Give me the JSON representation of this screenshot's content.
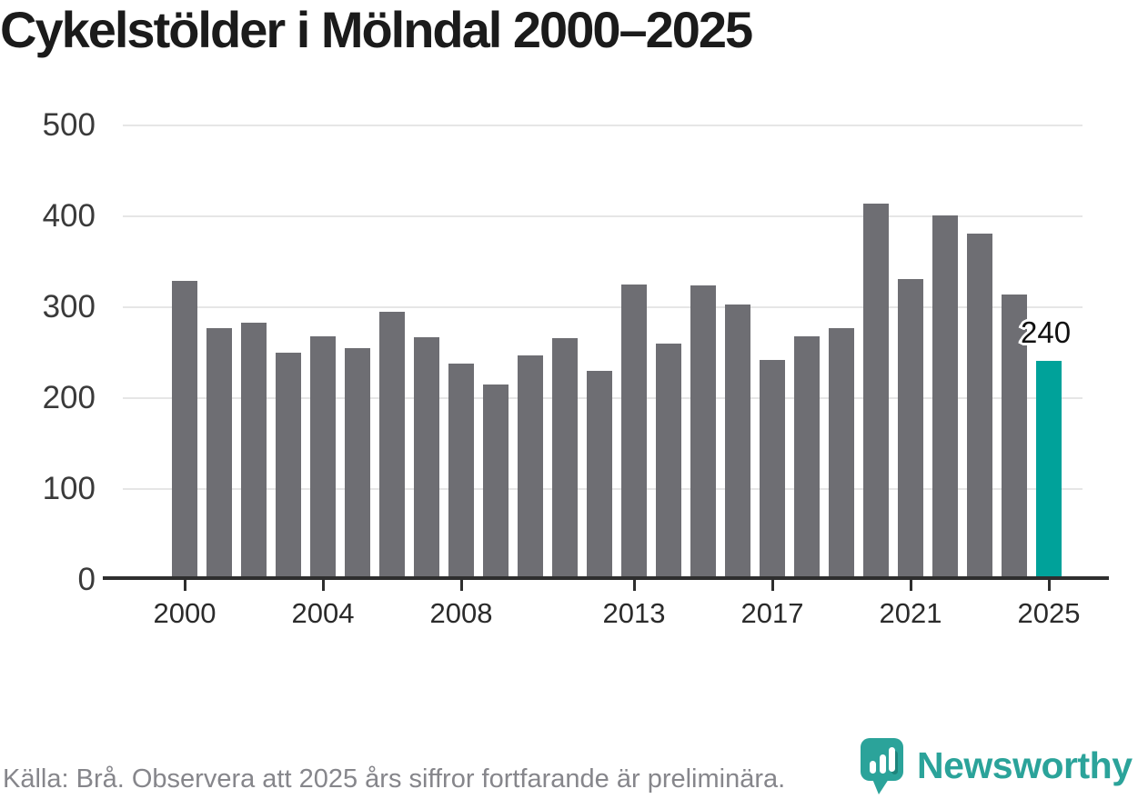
{
  "title": "Cykelstölder i Mölndal 2000–2025",
  "annotation": {
    "label": "240"
  },
  "footer": {
    "source_text": "Källa: Brå. Observera att 2025 års siffror fortfarande är preliminära.",
    "brand_name": "Newsworthy"
  },
  "colors": {
    "bar": "#6e6e73",
    "highlight": "#00a29a",
    "brand": "#2ba39a",
    "grid": "#e6e6e6",
    "axis": "#2e2e2e",
    "title_text": "#1b1b1b",
    "tick_text": "#2b2b2b",
    "footer_text": "#86868b"
  },
  "chart_data": {
    "type": "bar",
    "title": "Cykelstölder i Mölndal 2000–2025",
    "xlabel": "",
    "ylabel": "",
    "categories": [
      2000,
      2001,
      2002,
      2003,
      2004,
      2005,
      2006,
      2007,
      2008,
      2009,
      2010,
      2011,
      2012,
      2013,
      2014,
      2015,
      2016,
      2017,
      2018,
      2019,
      2020,
      2021,
      2022,
      2023,
      2024,
      2025
    ],
    "values": [
      328,
      276,
      282,
      249,
      267,
      254,
      294,
      266,
      237,
      214,
      246,
      265,
      229,
      324,
      259,
      323,
      302,
      241,
      267,
      276,
      413,
      330,
      400,
      380,
      313,
      240
    ],
    "highlight_year": 2025,
    "highlight_value_label": "240",
    "xticks": [
      2000,
      2004,
      2008,
      2013,
      2017,
      2021,
      2025
    ],
    "yticks": [
      0,
      100,
      200,
      300,
      400,
      500
    ],
    "ylim": [
      0,
      500
    ],
    "grid": "horizontal-only",
    "legend": "none"
  }
}
